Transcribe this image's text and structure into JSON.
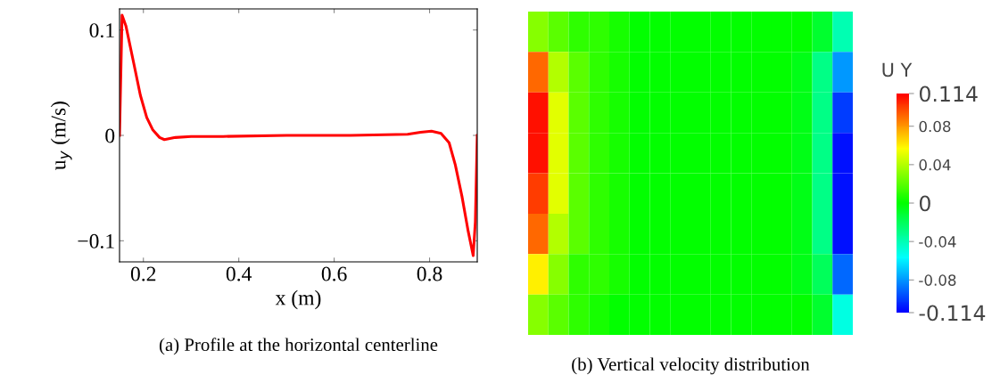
{
  "chart_data": [
    {
      "type": "line",
      "title": "(a) Profile at the horizontal centerline",
      "xlabel": "x (m)",
      "ylabel": "u$_{y}$ (m/s)",
      "x": [
        0.15,
        0.1553,
        0.1633,
        0.18,
        0.1937,
        0.207,
        0.22,
        0.234,
        0.244,
        0.267,
        0.3,
        0.367,
        0.5,
        0.634,
        0.754,
        0.781,
        0.804,
        0.824,
        0.841,
        0.854,
        0.868,
        0.881,
        0.8915,
        0.896,
        0.9
      ],
      "series": [
        {
          "color": "#ff0000",
          "values": [
            0,
            0.114,
            0.104,
            0.068,
            0.038,
            0.017,
            0.005,
            -0.002,
            -0.004,
            -0.002,
            -0.001,
            -0.001,
            0,
            0,
            0.001,
            0.003,
            0.004,
            0.002,
            -0.007,
            -0.028,
            -0.058,
            -0.091,
            -0.114,
            -0.082,
            0
          ]
        }
      ],
      "xlim": [
        0.15,
        0.9
      ],
      "ylim": [
        -0.12,
        0.12
      ],
      "xticks": [
        0.2,
        0.4,
        0.6,
        0.8
      ],
      "yticks": [
        {
          "value": -0.1,
          "label": "−0.1"
        },
        0,
        0.1
      ]
    },
    {
      "type": "heatmap",
      "title": "(b) Vertical velocity distribution",
      "clabel": "U Y",
      "categories": [
        null,
        null,
        null,
        null,
        null,
        null,
        null,
        null,
        null,
        null,
        null,
        null,
        null,
        null,
        null,
        null
      ],
      "y_categories": [
        null,
        null,
        null,
        null,
        null,
        null,
        null,
        null
      ],
      "cells": [
        [
          0.03,
          0.02,
          0.01,
          0.01,
          0.005,
          0,
          0,
          0,
          0,
          0,
          0,
          0,
          0,
          0,
          -0.01,
          -0.04
        ],
        [
          0.09,
          0.04,
          0.02,
          0.01,
          0.005,
          0,
          0,
          0,
          0,
          0,
          0,
          0,
          0,
          -0.005,
          -0.03,
          -0.08
        ],
        [
          0.11,
          0.05,
          0.02,
          0.01,
          0.005,
          0,
          0,
          0,
          0,
          0,
          0,
          0,
          0,
          -0.005,
          -0.03,
          -0.1
        ],
        [
          0.11,
          0.05,
          0.02,
          0.01,
          0.005,
          0,
          0,
          0,
          0,
          0,
          0,
          0,
          0,
          -0.005,
          -0.03,
          -0.11
        ],
        [
          0.1,
          0.05,
          0.02,
          0.01,
          0.005,
          0,
          0,
          0,
          0,
          0,
          0,
          0,
          0,
          -0.005,
          -0.03,
          -0.11
        ],
        [
          0.09,
          0.04,
          0.02,
          0.01,
          0.005,
          0,
          0,
          0,
          0,
          0,
          0,
          0,
          0,
          -0.005,
          -0.03,
          -0.11
        ],
        [
          0.06,
          0.03,
          0.01,
          0.01,
          0.005,
          0,
          0,
          0,
          0,
          0,
          0,
          0,
          0,
          -0.005,
          -0.02,
          -0.09
        ],
        [
          0.03,
          0.02,
          0.01,
          0.005,
          0,
          0,
          0,
          0,
          0,
          0,
          0,
          0,
          0,
          0,
          -0.01,
          -0.05
        ]
      ],
      "clim": [
        -0.114,
        0.114
      ],
      "cticks": [
        {
          "value": -0.114,
          "label": "-0.114"
        },
        {
          "value": -0.08,
          "label": "-0.08"
        },
        {
          "value": -0.04,
          "label": "-0.04"
        },
        0,
        {
          "value": 0.04,
          "label": "0.04"
        },
        {
          "value": 0.08,
          "label": "0.08"
        },
        {
          "value": 0.114,
          "label": "0.114"
        }
      ],
      "tick_labels": false
    }
  ]
}
